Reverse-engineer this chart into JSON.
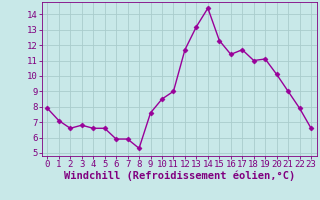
{
  "x": [
    0,
    1,
    2,
    3,
    4,
    5,
    6,
    7,
    8,
    9,
    10,
    11,
    12,
    13,
    14,
    15,
    16,
    17,
    18,
    19,
    20,
    21,
    22,
    23
  ],
  "y": [
    7.9,
    7.1,
    6.6,
    6.8,
    6.6,
    6.6,
    5.9,
    5.9,
    5.3,
    7.6,
    8.5,
    9.0,
    11.7,
    13.2,
    14.4,
    12.3,
    11.4,
    11.7,
    11.0,
    11.1,
    10.1,
    9.0,
    7.9,
    6.6
  ],
  "line_color": "#990099",
  "marker": "D",
  "markersize": 2.5,
  "linewidth": 1.0,
  "bg_color": "#c8e8e8",
  "grid_color": "#b0d8d8",
  "xlabel": "Windchill (Refroidissement éolien,°C)",
  "xlabel_fontsize": 7.5,
  "xlabel_color": "#800080",
  "xlabel_bold": true,
  "ylim": [
    4.8,
    14.8
  ],
  "xlim": [
    -0.5,
    23.5
  ],
  "yticks": [
    5,
    6,
    7,
    8,
    9,
    10,
    11,
    12,
    13,
    14
  ],
  "xticks": [
    0,
    1,
    2,
    3,
    4,
    5,
    6,
    7,
    8,
    9,
    10,
    11,
    12,
    13,
    14,
    15,
    16,
    17,
    18,
    19,
    20,
    21,
    22,
    23
  ],
  "tick_fontsize": 6.5,
  "tick_color": "#800080",
  "spine_color": "#800080",
  "axis_bg": "#c8e8e8",
  "grid_line_color": "#aacccc"
}
